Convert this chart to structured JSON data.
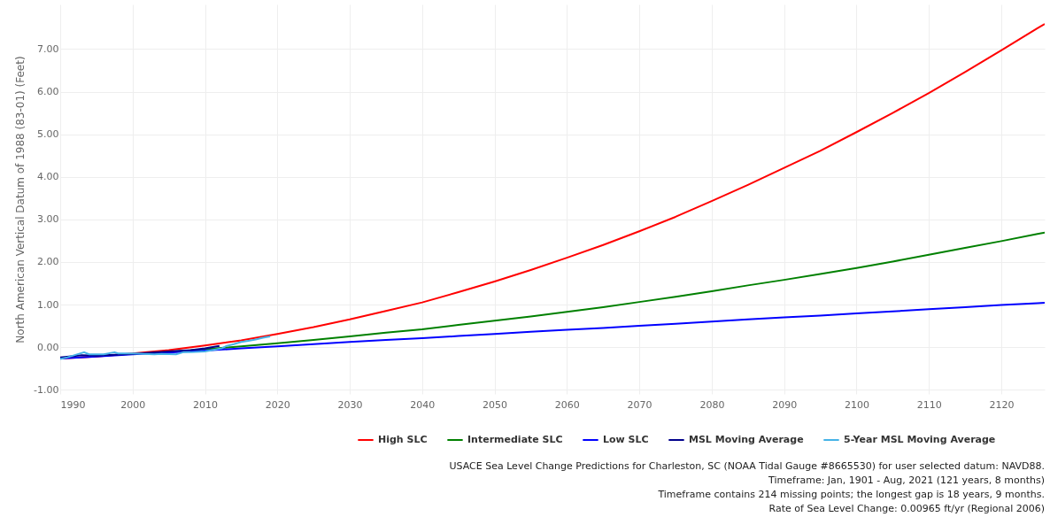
{
  "chart_data": {
    "type": "line",
    "ylabel": "North American Vertical Datum of 1988 (83-01) (Feet)",
    "xlim": [
      1990,
      2126
    ],
    "ylim": [
      -1.1,
      8.05
    ],
    "xticks": [
      1990,
      2000,
      2010,
      2020,
      2030,
      2040,
      2050,
      2060,
      2070,
      2080,
      2090,
      2100,
      2110,
      2120
    ],
    "yticks": [
      {
        "value": -1,
        "label": "-1.00"
      },
      {
        "value": 0,
        "label": "0.00"
      },
      {
        "value": 1,
        "label": "1.00"
      },
      {
        "value": 2,
        "label": "2.00"
      },
      {
        "value": 3,
        "label": "3.00"
      },
      {
        "value": 4,
        "label": "4.00"
      },
      {
        "value": 5,
        "label": "5.00"
      },
      {
        "value": 6,
        "label": "6.00"
      },
      {
        "value": 7,
        "label": "7.00"
      }
    ],
    "grid": true,
    "legend": "bottom right",
    "marker": "none",
    "line_style": "solid",
    "x": [
      1990,
      1995,
      2000,
      2005,
      2010,
      2015,
      2020,
      2025,
      2030,
      2035,
      2040,
      2045,
      2050,
      2055,
      2060,
      2065,
      2070,
      2075,
      2080,
      2085,
      2090,
      2095,
      2100,
      2105,
      2110,
      2115,
      2120,
      2125,
      2126
    ],
    "series": [
      {
        "name": "High SLC",
        "color": "#ff0000",
        "values": [
          -0.27,
          -0.22,
          -0.15,
          -0.07,
          0.04,
          0.16,
          0.31,
          0.47,
          0.65,
          0.85,
          1.05,
          1.29,
          1.54,
          1.81,
          2.1,
          2.4,
          2.72,
          3.06,
          3.43,
          3.81,
          4.21,
          4.61,
          5.05,
          5.5,
          5.97,
          6.46,
          6.97,
          7.49,
          7.59
        ]
      },
      {
        "name": "Intermediate SLC",
        "color": "#008000",
        "values": [
          null,
          null,
          null,
          -0.11,
          -0.05,
          0.02,
          0.09,
          0.17,
          0.25,
          0.34,
          0.42,
          0.52,
          0.62,
          0.72,
          0.83,
          0.94,
          1.06,
          1.18,
          1.31,
          1.45,
          1.58,
          1.72,
          1.86,
          2.01,
          2.17,
          2.33,
          2.49,
          2.66,
          2.69
        ]
      },
      {
        "name": "Low SLC",
        "color": "#0000ff",
        "values": [
          -0.27,
          -0.22,
          -0.17,
          -0.13,
          -0.08,
          -0.03,
          0.02,
          0.07,
          0.12,
          0.17,
          0.21,
          0.26,
          0.31,
          0.36,
          0.41,
          0.45,
          0.5,
          0.55,
          0.6,
          0.65,
          0.7,
          0.74,
          0.79,
          0.84,
          0.89,
          0.94,
          0.99,
          1.03,
          1.04
        ]
      },
      {
        "name": "MSL Moving Average",
        "color": "#00008b",
        "x": [
          1990,
          1993,
          1995,
          2000,
          2005,
          2008,
          2010,
          2012
        ],
        "values": [
          -0.24,
          -0.19,
          -0.2,
          -0.16,
          -0.1,
          -0.07,
          -0.03,
          0.03
        ]
      },
      {
        "name": "5-Year MSL Moving Average",
        "color": "#45b3e7",
        "x": [
          1990,
          1991,
          1993.3,
          1994,
          1996,
          1997.5,
          1998,
          2000,
          2003,
          2004,
          2006,
          2007,
          2008,
          2010,
          2011,
          2012.3,
          2013,
          2014,
          2015,
          2016,
          2017,
          2018,
          2019
        ],
        "values": [
          -0.28,
          -0.24,
          -0.12,
          -0.17,
          -0.17,
          -0.12,
          -0.15,
          -0.15,
          -0.17,
          -0.16,
          -0.17,
          -0.12,
          -0.12,
          -0.1,
          -0.07,
          -0.03,
          0.03,
          0.07,
          0.12,
          0.15,
          0.18,
          0.22,
          0.25
        ]
      }
    ],
    "annotations": [
      "USACE Sea Level Change Predictions for Charleston, SC (NOAA Tidal Gauge #8665530) for user selected datum: NAVD88.",
      "Timeframe: Jan, 1901 - Aug, 2021 (121 years, 8 months)",
      "Timeframe contains 214 missing points; the longest gap is 18 years, 9 months.",
      "Rate of Sea Level Change: 0.00965 ft/yr (Regional 2006)"
    ]
  }
}
